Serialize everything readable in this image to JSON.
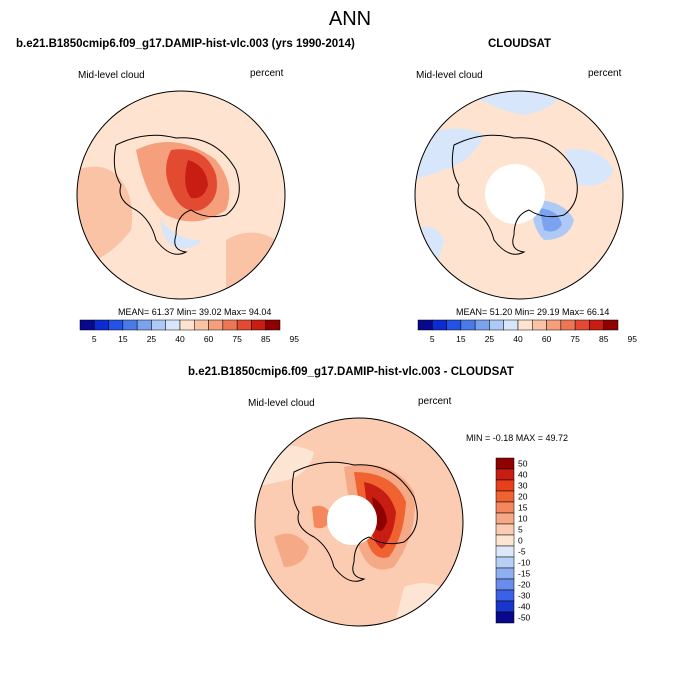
{
  "title": "ANN",
  "panels": [
    {
      "id": "model",
      "title": "b.e21.B1850cmip6.f09_g17.DAMIP-hist-vlc.003 (yrs 1990-2014)",
      "variable": "Mid-level cloud",
      "units": "percent",
      "stats": "MEAN= 61.37  Min= 39.02  Max= 94.04",
      "colorbar_labels": [
        "5",
        "15",
        "25",
        "40",
        "60",
        "75",
        "85",
        "95"
      ]
    },
    {
      "id": "obs",
      "title": "CLOUDSAT",
      "variable": "Mid-level cloud",
      "units": "percent",
      "stats": "MEAN= 51.20  Min= 29.19  Max= 66.14",
      "colorbar_labels": [
        "5",
        "15",
        "25",
        "40",
        "60",
        "75",
        "85",
        "95"
      ]
    },
    {
      "id": "diff",
      "title": "b.e21.B1850cmip6.f09_g17.DAMIP-hist-vlc.003 - CLOUDSAT",
      "variable": "Mid-level cloud",
      "units": "percent",
      "stats": "MIN =  -0.18 MAX =  49.72",
      "colorbar_labels": [
        "50",
        "40",
        "30",
        "20",
        "15",
        "10",
        "5",
        "0",
        "-5",
        "-10",
        "-15",
        "-20",
        "-30",
        "-40",
        "-50"
      ]
    }
  ],
  "colors": {
    "abs_scale": [
      "#08088c",
      "#0c2bd0",
      "#2252e6",
      "#4a7ae8",
      "#7ba2ee",
      "#aec9f5",
      "#d7e6fa",
      "#fde3d0",
      "#fac3a5",
      "#f59f7d",
      "#ed7755",
      "#e34a32",
      "#c81d12",
      "#8f0000"
    ],
    "diff_scale": [
      "#8f0000",
      "#c81d12",
      "#e7401c",
      "#f0622f",
      "#f4875d",
      "#f6a987",
      "#fbcbb2",
      "#fde5d4",
      "#dde9fb",
      "#b9d0f6",
      "#8fb0f0",
      "#6a8ced",
      "#3b62e6",
      "#1a35cc",
      "#08088c"
    ]
  }
}
